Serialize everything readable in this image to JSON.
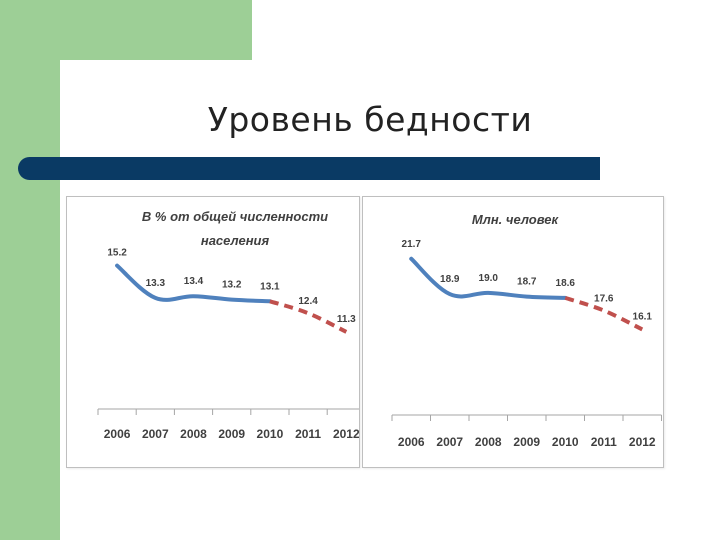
{
  "slide": {
    "title": "Уровень бедности",
    "colors": {
      "green": "#9dcf96",
      "rule": "#0a3a64",
      "actual": "#4f81bd",
      "forecast": "#c0504d"
    }
  },
  "chart_data": [
    {
      "type": "line",
      "title_lines": [
        "В % от общей численности",
        "населения"
      ],
      "categories": [
        "2006",
        "2007",
        "2008",
        "2009",
        "2010",
        "2011",
        "2012"
      ],
      "actual": {
        "x": [
          "2006",
          "2007",
          "2008",
          "2009",
          "2010"
        ],
        "values": [
          15.2,
          13.3,
          13.4,
          13.2,
          13.1
        ],
        "style": "solid",
        "color": "#4f81bd"
      },
      "forecast": {
        "x": [
          "2010",
          "2011",
          "2012"
        ],
        "values": [
          13.1,
          12.4,
          11.3
        ],
        "style": "dashed",
        "color": "#c0504d"
      },
      "data_labels": [
        "15.2",
        "13.3",
        "13.4",
        "13.2",
        "13.1",
        "12.4",
        "11.3"
      ],
      "grid": false
    },
    {
      "type": "line",
      "title_lines": [
        "Млн. человек"
      ],
      "categories": [
        "2006",
        "2007",
        "2008",
        "2009",
        "2010",
        "2011",
        "2012"
      ],
      "actual": {
        "x": [
          "2006",
          "2007",
          "2008",
          "2009",
          "2010"
        ],
        "values": [
          21.7,
          18.9,
          19.0,
          18.7,
          18.6
        ],
        "style": "solid",
        "color": "#4f81bd"
      },
      "forecast": {
        "x": [
          "2010",
          "2011",
          "2012"
        ],
        "values": [
          18.6,
          17.6,
          16.1
        ],
        "style": "dashed",
        "color": "#c0504d"
      },
      "data_labels": [
        "21.7",
        "18.9",
        "19.0",
        "18.7",
        "18.6",
        "17.6",
        "16.1"
      ],
      "grid": false
    }
  ]
}
